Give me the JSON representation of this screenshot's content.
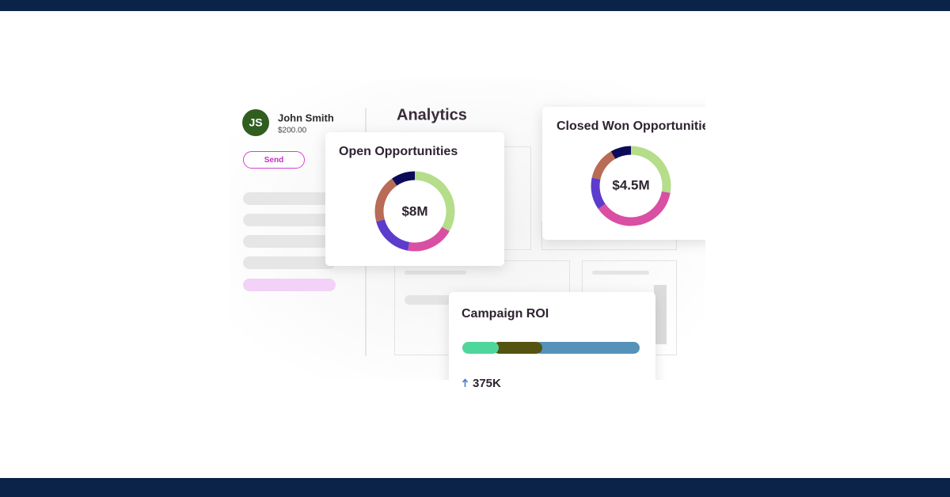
{
  "sidebar": {
    "avatar": "JS",
    "name": "John Smith",
    "amount": "$200.00",
    "button": "Send"
  },
  "header": {
    "title": "Analytics"
  },
  "cards": [
    {
      "title": "Open Opportunities",
      "value": "$8M"
    },
    {
      "title": "Closed Won Opportunities",
      "value": "$4.5M"
    },
    {
      "title": "Campaign ROI",
      "value": "375K"
    }
  ]
}
